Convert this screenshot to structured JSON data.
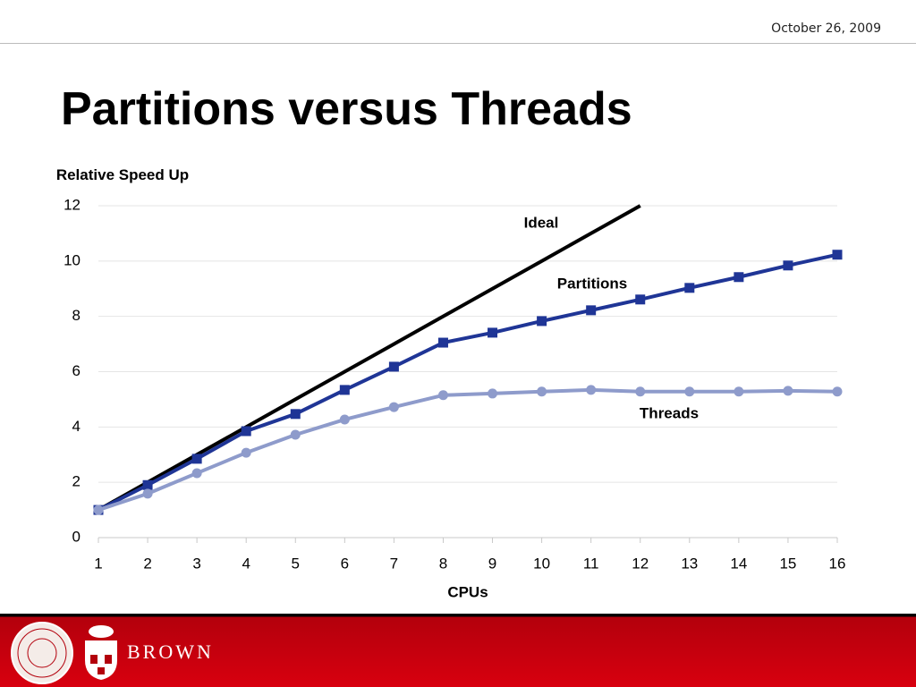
{
  "date": "October 26, 2009",
  "title": "Partitions versus Threads",
  "chart_data": {
    "type": "line",
    "y_label": "Relative Speed Up",
    "x_label": "CPUs",
    "x": [
      1,
      2,
      3,
      4,
      5,
      6,
      7,
      8,
      9,
      10,
      11,
      12,
      13,
      14,
      15,
      16
    ],
    "xlim": [
      1,
      16
    ],
    "xticks": [
      1,
      2,
      3,
      4,
      5,
      6,
      7,
      8,
      9,
      10,
      11,
      12,
      13,
      14,
      15,
      16
    ],
    "ylim": [
      0,
      12
    ],
    "yticks": [
      0,
      2,
      4,
      6,
      8,
      10,
      12
    ],
    "grid": true,
    "series": [
      {
        "name": "Ideal",
        "color": "#000000",
        "marker": null,
        "values": [
          1,
          2,
          3,
          4,
          5,
          6,
          7,
          8,
          9,
          10,
          11,
          12,
          null,
          null,
          null,
          null
        ]
      },
      {
        "name": "Partitions",
        "color": "#1f3596",
        "marker": "square",
        "values": [
          1,
          1.9,
          2.85,
          3.85,
          4.47,
          5.34,
          6.18,
          7.05,
          7.41,
          7.83,
          8.22,
          8.61,
          9.03,
          9.42,
          9.84,
          10.23
        ]
      },
      {
        "name": "Threads",
        "color": "#8e9bcb",
        "marker": "circle",
        "values": [
          1,
          1.59,
          2.33,
          3.07,
          3.72,
          4.27,
          4.72,
          5.15,
          5.21,
          5.28,
          5.34,
          5.28,
          5.28,
          5.28,
          5.31,
          5.28
        ]
      }
    ]
  },
  "footer": {
    "brand": "BROWN"
  }
}
